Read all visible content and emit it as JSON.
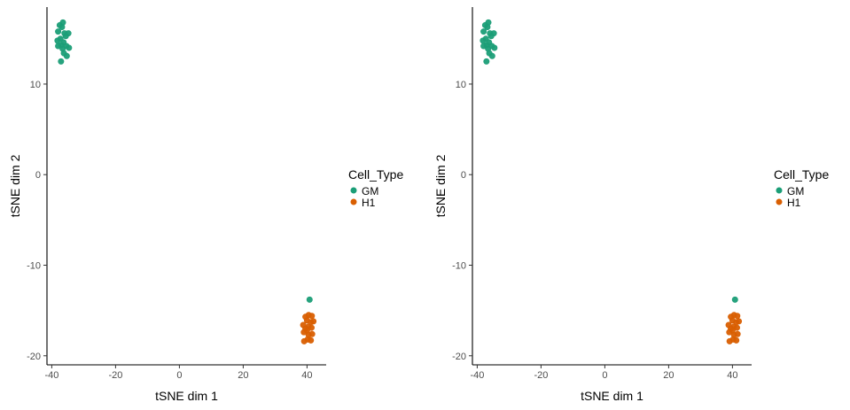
{
  "chart_data": [
    {
      "type": "scatter",
      "title": "",
      "xlabel": "tSNE dim 1",
      "ylabel": "tSNE dim 2",
      "xlim": [
        -41.5,
        46
      ],
      "ylim": [
        -21,
        18.5
      ],
      "xticks": [
        -40,
        -20,
        0,
        20,
        40
      ],
      "yticks": [
        -20,
        -10,
        0,
        10
      ],
      "grid": false,
      "legend": {
        "title": "Cell_Type",
        "position": "right"
      },
      "series": [
        {
          "name": "GM",
          "color": "#1b9e77",
          "points": [
            [
              -36.5,
              16.8
            ],
            [
              -37.5,
              16.5
            ],
            [
              -36.8,
              16.3
            ],
            [
              -38.0,
              15.8
            ],
            [
              -36.0,
              15.6
            ],
            [
              -34.8,
              15.6
            ],
            [
              -35.6,
              15.3
            ],
            [
              -37.3,
              15.0
            ],
            [
              -38.2,
              14.8
            ],
            [
              -36.3,
              14.6
            ],
            [
              -37.0,
              14.3
            ],
            [
              -35.4,
              14.2
            ],
            [
              -34.6,
              14.0
            ],
            [
              -36.6,
              13.9
            ],
            [
              -38.0,
              14.2
            ],
            [
              -36.2,
              13.4
            ],
            [
              -35.3,
              13.1
            ],
            [
              -37.1,
              12.5
            ],
            [
              40.8,
              -13.8
            ]
          ]
        },
        {
          "name": "H1",
          "color": "#d95f02",
          "points": [
            [
              40.5,
              -15.5
            ],
            [
              41.5,
              -15.6
            ],
            [
              39.5,
              -15.7
            ],
            [
              40.0,
              -16.1
            ],
            [
              41.2,
              -16.3
            ],
            [
              42.0,
              -16.2
            ],
            [
              38.8,
              -16.6
            ],
            [
              40.4,
              -16.8
            ],
            [
              39.5,
              -17.0
            ],
            [
              41.4,
              -16.9
            ],
            [
              40.0,
              -17.2
            ],
            [
              41.6,
              -17.6
            ],
            [
              39.0,
              -17.4
            ],
            [
              40.5,
              -17.7
            ],
            [
              40.2,
              -18.2
            ],
            [
              41.2,
              -18.3
            ],
            [
              39.1,
              -18.4
            ]
          ]
        }
      ]
    },
    {
      "type": "scatter",
      "title": "",
      "xlabel": "tSNE dim 1",
      "ylabel": "tSNE dim 2",
      "xlim": [
        -41.5,
        46
      ],
      "ylim": [
        -21,
        18.5
      ],
      "xticks": [
        -40,
        -20,
        0,
        20,
        40
      ],
      "yticks": [
        -20,
        -10,
        0,
        10
      ],
      "grid": false,
      "legend": {
        "title": "Cell_Type",
        "position": "right"
      },
      "series": [
        {
          "name": "GM",
          "color": "#1b9e77",
          "points": [
            [
              -36.5,
              16.8
            ],
            [
              -37.5,
              16.5
            ],
            [
              -36.8,
              16.3
            ],
            [
              -38.0,
              15.8
            ],
            [
              -36.0,
              15.6
            ],
            [
              -34.8,
              15.6
            ],
            [
              -35.6,
              15.3
            ],
            [
              -37.3,
              15.0
            ],
            [
              -38.2,
              14.8
            ],
            [
              -36.3,
              14.6
            ],
            [
              -37.0,
              14.3
            ],
            [
              -35.4,
              14.2
            ],
            [
              -34.6,
              14.0
            ],
            [
              -36.6,
              13.9
            ],
            [
              -38.0,
              14.2
            ],
            [
              -36.2,
              13.4
            ],
            [
              -35.3,
              13.1
            ],
            [
              -37.1,
              12.5
            ],
            [
              40.8,
              -13.8
            ]
          ]
        },
        {
          "name": "H1",
          "color": "#d95f02",
          "points": [
            [
              40.5,
              -15.5
            ],
            [
              41.5,
              -15.6
            ],
            [
              39.5,
              -15.7
            ],
            [
              40.0,
              -16.1
            ],
            [
              41.2,
              -16.3
            ],
            [
              42.0,
              -16.2
            ],
            [
              38.8,
              -16.6
            ],
            [
              40.4,
              -16.8
            ],
            [
              39.5,
              -17.0
            ],
            [
              41.4,
              -16.9
            ],
            [
              40.0,
              -17.2
            ],
            [
              41.6,
              -17.6
            ],
            [
              39.0,
              -17.4
            ],
            [
              40.5,
              -17.7
            ],
            [
              40.2,
              -18.2
            ],
            [
              41.2,
              -18.3
            ],
            [
              39.1,
              -18.4
            ]
          ]
        }
      ]
    }
  ]
}
